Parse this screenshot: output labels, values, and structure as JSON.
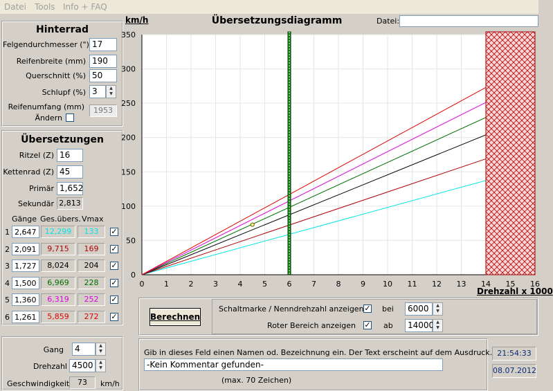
{
  "menu": [
    "Datei",
    "Tools",
    "Info + FAQ"
  ],
  "hinterrad": {
    "title": "Hinterrad",
    "felgen_label": "Felgendurchmesser (\")",
    "felgen_value": "17",
    "breite_label": "Reifenbreite (mm)",
    "breite_value": "190",
    "quer_label": "Querschnitt (%)",
    "quer_value": "50",
    "schlupf_label": "Schlupf (%)",
    "schlupf_value": "3",
    "umfang_label": "Reifenumfang (mm)",
    "aendern_label": "Ändern",
    "umfang_value": "1953"
  },
  "uebersetzungen": {
    "title": "Übersetzungen",
    "ritzel_label": "Ritzel (Z)",
    "ritzel_value": "16",
    "kettenrad_label": "Kettenrad (Z)",
    "kettenrad_value": "45",
    "primaer_label": "Primär",
    "primaer_value": "1,652",
    "sekundaer_label": "Sekundär",
    "sekundaer_value": "2,813",
    "col_gaenge": "Gänge",
    "col_ges": "Ges.übers.",
    "col_vmax": "Vmax",
    "gears": [
      {
        "n": "1",
        "ratio": "2,647",
        "total": "12,299",
        "vmax": "133",
        "color": "#00e5e5"
      },
      {
        "n": "2",
        "ratio": "2,091",
        "total": "9,715",
        "vmax": "169",
        "color": "#b00000"
      },
      {
        "n": "3",
        "ratio": "1,727",
        "total": "8,024",
        "vmax": "204",
        "color": "#000000"
      },
      {
        "n": "4",
        "ratio": "1,500",
        "total": "6,969",
        "vmax": "228",
        "color": "#007000"
      },
      {
        "n": "5",
        "ratio": "1,360",
        "total": "6,319",
        "vmax": "252",
        "color": "#e000e0"
      },
      {
        "n": "6",
        "ratio": "1,261",
        "total": "5,859",
        "vmax": "272",
        "color": "#e00000"
      }
    ]
  },
  "gang": {
    "gang_label": "Gang",
    "gang_value": "4",
    "drehzahl_label": "Drehzahl",
    "drehzahl_value": "4500",
    "geschw_label": "Geschwindigkeit:",
    "geschw_value": "73",
    "unit": "km/h"
  },
  "chart_header": {
    "unit": "km/h",
    "title": "Übersetzungsdiagramm",
    "datei_label": "Datei:",
    "datei_value": "",
    "xlabel": "Drehzahl x 1000"
  },
  "chart_data": {
    "type": "line",
    "xlim": [
      0,
      16
    ],
    "ylim": [
      0,
      350
    ],
    "x_ticks": [
      "0",
      "1",
      "2",
      "3",
      "4",
      "5",
      "6",
      "7",
      "8",
      "9",
      "10",
      "11",
      "12",
      "13",
      "14",
      "15",
      "16"
    ],
    "y_ticks": [
      "0",
      "50",
      "100",
      "150",
      "200",
      "250",
      "300",
      "350"
    ],
    "series": [
      {
        "color": "#00e5e5",
        "points": [
          [
            0,
            0
          ],
          [
            16,
            157
          ]
        ]
      },
      {
        "color": "#b00000",
        "points": [
          [
            0,
            0
          ],
          [
            16,
            193
          ]
        ]
      },
      {
        "color": "#000000",
        "points": [
          [
            0,
            0
          ],
          [
            16,
            233
          ]
        ]
      },
      {
        "color": "#007000",
        "points": [
          [
            0,
            0
          ],
          [
            16,
            262
          ]
        ]
      },
      {
        "color": "#e000e0",
        "points": [
          [
            0,
            0
          ],
          [
            16,
            287
          ]
        ]
      },
      {
        "color": "#e00000",
        "points": [
          [
            0,
            0
          ],
          [
            16,
            312
          ]
        ]
      }
    ],
    "marker_rpm": 6,
    "red_zone_from": 14,
    "point": [
      4.5,
      73
    ]
  },
  "controls": {
    "berechnen": "Berechnen",
    "schalt_label": "Schaltmarke / Nenndrehzahl anzeigen",
    "bei": "bei",
    "bei_value": "6000",
    "rot_label": "Roter Bereich anzeigen",
    "ab": "ab",
    "ab_value": "14000"
  },
  "comment": {
    "hint": "Gib in dieses Feld einen Namen od. Bezeichnung ein. Der Text erscheint auf dem Ausdruck.",
    "value": "-Kein Kommentar gefunden-",
    "max": "(max. 70 Zeichen)"
  },
  "clock": {
    "time": "21:54:33",
    "date": "08.07.2012"
  }
}
